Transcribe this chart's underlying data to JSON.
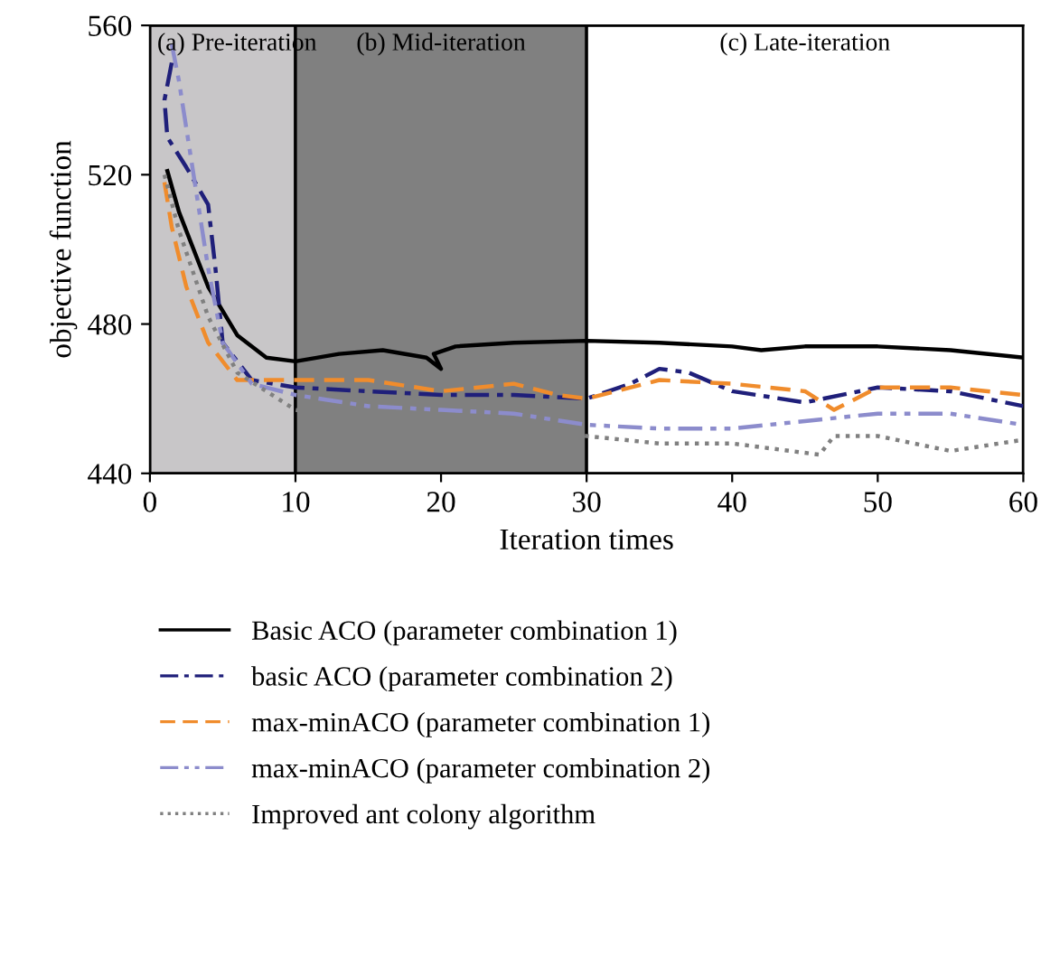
{
  "chart_data": {
    "type": "line",
    "xlabel": "Iteration times",
    "ylabel": "objective function",
    "xlim": [
      0,
      60
    ],
    "xticks": [
      0,
      10,
      20,
      30,
      40,
      50,
      60
    ],
    "ylim": [
      440,
      560
    ],
    "yticks": [
      440,
      480,
      520,
      560
    ],
    "grid": false,
    "legend": "bottom",
    "bands": [
      {
        "axis": "x",
        "from": 0,
        "to": 10,
        "label": "(a) Pre-iteration",
        "color": "#c8c6c8"
      },
      {
        "axis": "x",
        "from": 10,
        "to": 30,
        "label": "(b) Mid-iteration",
        "color": "#808080"
      },
      {
        "axis": "x",
        "from": 30,
        "to": 60,
        "label": "(c) Late-iteration",
        "color": "#ffffff"
      }
    ],
    "series": [
      {
        "name": "Basic ACO (parameter combination 1)",
        "color": "#000000",
        "line_style": "solid",
        "x": [
          1.2,
          2,
          4,
          6,
          8,
          10,
          13,
          16,
          19,
          20,
          19.5,
          21,
          25,
          30,
          35,
          40,
          42,
          45,
          50,
          55,
          60
        ],
        "values": [
          521,
          510,
          490,
          477,
          471,
          470,
          472,
          473,
          471,
          468,
          472,
          474,
          475,
          475.5,
          475,
          474,
          473,
          474,
          474,
          473,
          471
        ]
      },
      {
        "name": "basic ACO (parameter combination 2)",
        "color": "#1f1f7a",
        "line_style": "dashdot",
        "x": [
          1.5,
          1,
          1.2,
          2.5,
          4,
          4.5,
          5,
          7,
          10,
          15,
          20,
          25,
          30,
          33,
          35,
          37,
          40,
          45,
          50,
          55,
          60
        ],
        "values": [
          550,
          540,
          530,
          522,
          512,
          495,
          475,
          465,
          463,
          462,
          461,
          461,
          460,
          464,
          468,
          467,
          462,
          459,
          463,
          462,
          458
        ]
      },
      {
        "name": "max-minACO (parameter combination 1)",
        "color": "#f08c2c",
        "line_style": "dashed",
        "x": [
          1,
          1.5,
          2.5,
          4,
          6,
          10,
          15,
          20,
          25,
          28,
          30,
          32,
          35,
          40,
          45,
          47,
          50,
          55,
          60
        ],
        "values": [
          518,
          506,
          490,
          475,
          465,
          465,
          465,
          462,
          464,
          461,
          460,
          462,
          465,
          464,
          462,
          457,
          463,
          463,
          461
        ]
      },
      {
        "name": "max-minACO (parameter combination 2)",
        "color": "#8c8ccc",
        "line_style": "dashdotdot",
        "x": [
          1.5,
          2,
          3,
          4,
          5,
          7,
          10,
          15,
          20,
          25,
          30,
          35,
          40,
          45,
          50,
          55,
          60
        ],
        "values": [
          555,
          545,
          520,
          495,
          475,
          464,
          461,
          458,
          457,
          456,
          453,
          452,
          452,
          454,
          456,
          456,
          453
        ]
      },
      {
        "name": "Improved ant colony algorithm",
        "color": "#808080",
        "line_style": "dotted",
        "x": [
          1,
          2,
          4,
          6,
          10,
          15,
          20,
          25,
          30,
          35,
          40,
          44,
          46,
          47,
          50,
          55,
          60
        ],
        "values": [
          520,
          505,
          482,
          467,
          457,
          454,
          455,
          453,
          450,
          448,
          448,
          446,
          445,
          450,
          450,
          446,
          449
        ]
      }
    ]
  }
}
